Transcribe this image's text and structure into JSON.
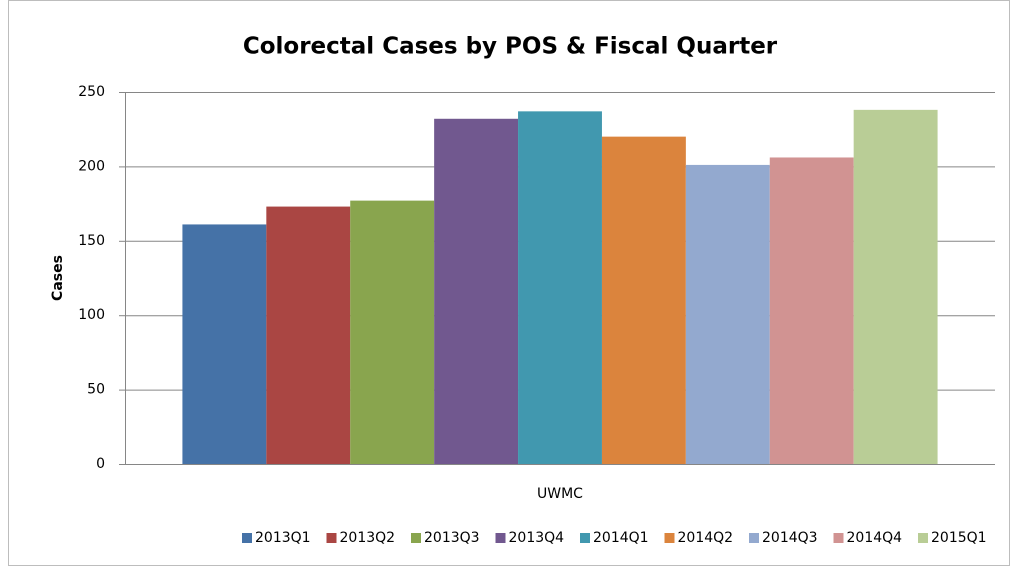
{
  "chart_data": {
    "type": "bar",
    "title": "Colorectal Cases by POS & Fiscal Quarter",
    "y_label": "Cases",
    "categories": [
      "UWMC"
    ],
    "series": [
      {
        "name": "2013Q1",
        "color": "#4572a7",
        "values": [
          161
        ]
      },
      {
        "name": "2013Q2",
        "color": "#aa4643",
        "values": [
          173
        ]
      },
      {
        "name": "2013Q3",
        "color": "#89a54e",
        "values": [
          177
        ]
      },
      {
        "name": "2013Q4",
        "color": "#71588f",
        "values": [
          232
        ]
      },
      {
        "name": "2014Q1",
        "color": "#4198af",
        "values": [
          237
        ]
      },
      {
        "name": "2014Q2",
        "color": "#db843d",
        "values": [
          220
        ]
      },
      {
        "name": "2014Q3",
        "color": "#93a9cf",
        "values": [
          201
        ]
      },
      {
        "name": "2014Q4",
        "color": "#d19392",
        "values": [
          206
        ]
      },
      {
        "name": "2015Q1",
        "color": "#b9cd96",
        "values": [
          238
        ]
      }
    ],
    "ylim": [
      0,
      250
    ],
    "yticks": [
      0,
      50,
      100,
      150,
      200,
      250
    ],
    "grid": true,
    "legend": "bottom"
  }
}
